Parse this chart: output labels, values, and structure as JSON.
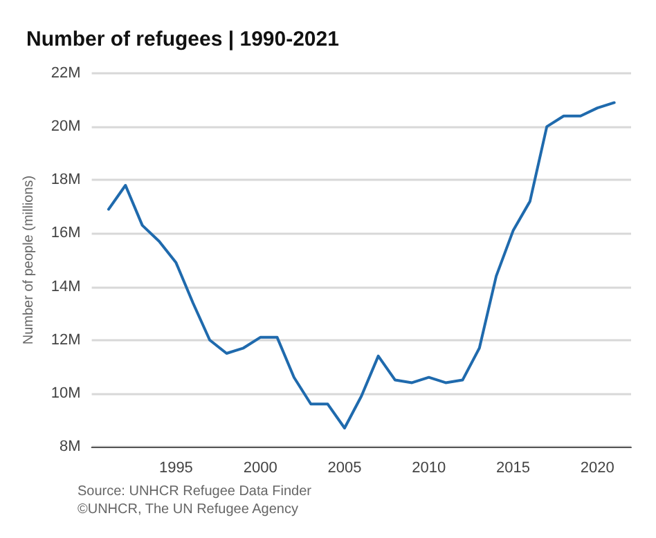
{
  "chart_data": {
    "type": "line",
    "title": "Number of refugees | 1990-2021",
    "ylabel": "Number of people (millions)",
    "x": [
      1991,
      1992,
      1993,
      1994,
      1995,
      1996,
      1997,
      1998,
      1999,
      2000,
      2001,
      2002,
      2003,
      2004,
      2005,
      2006,
      2007,
      2008,
      2009,
      2010,
      2011,
      2012,
      2013,
      2014,
      2015,
      2016,
      2017,
      2018,
      2019,
      2020,
      2021
    ],
    "series": [
      {
        "color": "#1f6aad",
        "values": [
          16.9,
          17.8,
          16.3,
          15.7,
          14.9,
          13.4,
          12.0,
          11.5,
          11.7,
          12.1,
          12.1,
          10.6,
          9.6,
          9.6,
          8.7,
          9.9,
          11.4,
          10.5,
          10.4,
          10.6,
          10.4,
          10.5,
          11.7,
          14.4,
          16.1,
          17.2,
          20.0,
          20.4,
          20.4,
          20.7,
          20.9
        ]
      }
    ],
    "xlim": [
      1990,
      2022
    ],
    "xticks": [
      1995,
      2000,
      2005,
      2010,
      2015,
      2020
    ],
    "ylim": [
      8,
      22
    ],
    "yticks": [
      {
        "value": 8,
        "label": "8M"
      },
      {
        "value": 10,
        "label": "10M"
      },
      {
        "value": 12,
        "label": "12M"
      },
      {
        "value": 14,
        "label": "14M"
      },
      {
        "value": 16,
        "label": "16M"
      },
      {
        "value": 18,
        "label": "18M"
      },
      {
        "value": 20,
        "label": "20M"
      },
      {
        "value": 22,
        "label": "22M"
      }
    ],
    "grid": "y",
    "marker": "none",
    "line_style": "solid",
    "annotations": [
      "Source: UNHCR Refugee Data Finder",
      "©UNHCR, The UN Refugee Agency"
    ]
  }
}
